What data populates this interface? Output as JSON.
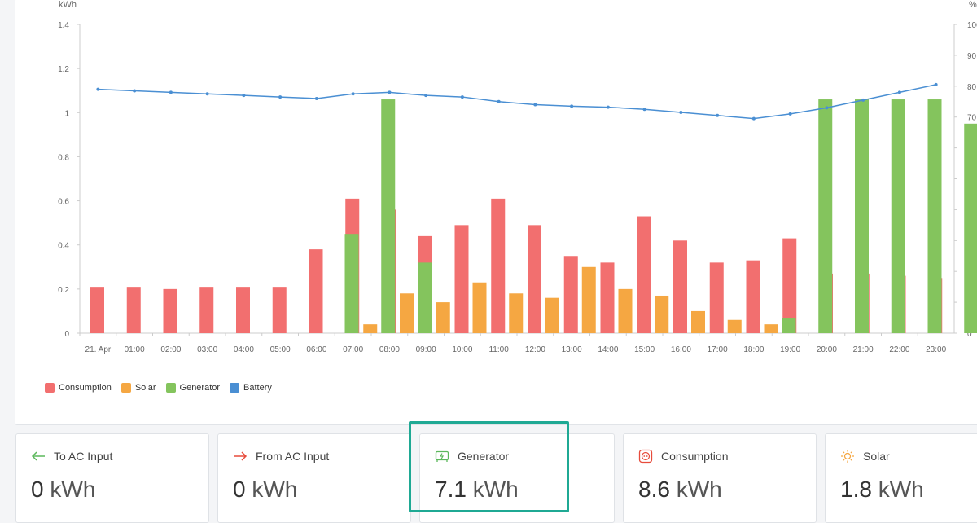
{
  "chart_data": {
    "type": "bar",
    "left_axis_unit": "kWh",
    "right_axis_unit": "%",
    "categories": [
      "21. Apr",
      "01:00",
      "02:00",
      "03:00",
      "04:00",
      "05:00",
      "06:00",
      "07:00",
      "08:00",
      "09:00",
      "10:00",
      "11:00",
      "12:00",
      "13:00",
      "14:00",
      "15:00",
      "16:00",
      "17:00",
      "18:00",
      "19:00",
      "20:00",
      "21:00",
      "22:00",
      "23:00"
    ],
    "ylim": [
      0,
      1.4
    ],
    "yticks": [
      "0",
      "0.2",
      "0.4",
      "0.6",
      "0.8",
      "1",
      "1.2",
      "1.4"
    ],
    "right_ylim": [
      0,
      100
    ],
    "right_yticks": [
      "0",
      "10",
      "20",
      "30",
      "40",
      "50",
      "60",
      "70",
      "80",
      "90",
      "100"
    ],
    "series": [
      {
        "name": "Consumption",
        "color": "#f26f6f",
        "values": [
          0.21,
          0.21,
          0.2,
          0.21,
          0.21,
          0.21,
          0.38,
          0.61,
          0.56,
          0.44,
          0.49,
          0.61,
          0.49,
          0.35,
          0.32,
          0.53,
          0.42,
          0.32,
          0.33,
          0.43,
          0.27,
          0.27,
          0.26,
          0.25
        ]
      },
      {
        "name": "Solar",
        "color": "#f5a742",
        "values": [
          0,
          0,
          0,
          0,
          0,
          0,
          0,
          0.04,
          0.18,
          0.14,
          0.23,
          0.18,
          0.16,
          0.3,
          0.2,
          0.17,
          0.1,
          0.06,
          0.04,
          0,
          0,
          0,
          0,
          0
        ]
      },
      {
        "name": "Generator",
        "color": "#84c45d",
        "values": [
          0,
          0,
          0,
          0,
          0,
          0,
          0.45,
          1.06,
          0.32,
          0,
          0,
          0,
          0,
          0,
          0,
          0,
          0,
          0,
          0.07,
          1.06,
          1.06,
          1.06,
          1.06,
          0.95
        ]
      },
      {
        "name": "Battery",
        "color": "#4a8fd3",
        "axis": "right",
        "values": [
          79,
          78.5,
          78,
          77.5,
          77,
          76.5,
          76,
          77.5,
          78,
          77,
          76.5,
          75,
          74,
          73.5,
          73.2,
          72.5,
          71.5,
          70.5,
          69.5,
          71,
          73,
          75.5,
          78,
          80.5
        ]
      }
    ],
    "legend_position": "bottom-left",
    "grid": false
  },
  "cards": [
    {
      "label": "To AC Input",
      "value": "0",
      "unit": "kWh",
      "icon": "arrow-left-icon",
      "icon_color": "#5cb85c"
    },
    {
      "label": "From AC Input",
      "value": "0",
      "unit": "kWh",
      "icon": "arrow-right-icon",
      "icon_color": "#e74c3c"
    },
    {
      "label": "Generator",
      "value": "7.1",
      "unit": "kWh",
      "icon": "generator-icon",
      "icon_color": "#5cb85c"
    },
    {
      "label": "Consumption",
      "value": "8.6",
      "unit": "kWh",
      "icon": "outlet-icon",
      "icon_color": "#e74c3c"
    },
    {
      "label": "Solar",
      "value": "1.8",
      "unit": "kWh",
      "icon": "sun-icon",
      "icon_color": "#f5a742"
    }
  ]
}
